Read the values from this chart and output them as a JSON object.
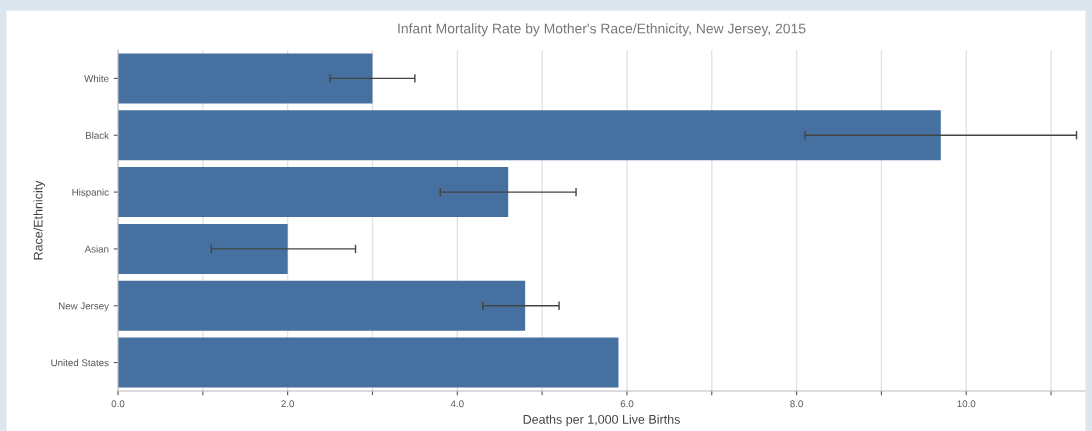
{
  "chart_data": {
    "type": "bar",
    "orientation": "horizontal",
    "title": "Infant Mortality Rate by Mother's Race/Ethnicity, New Jersey, 2015",
    "xlabel": "Deaths per 1,000 Live Births",
    "ylabel": "Race/Ethnicity",
    "categories": [
      "White",
      "Black",
      "Hispanic",
      "Asian",
      "New Jersey",
      "United States"
    ],
    "values": [
      3.0,
      9.7,
      4.6,
      2.0,
      4.8,
      5.9
    ],
    "errors": [
      [
        2.5,
        3.5
      ],
      [
        8.1,
        11.3
      ],
      [
        3.8,
        5.4
      ],
      [
        1.1,
        2.8
      ],
      [
        4.3,
        5.2
      ],
      null
    ],
    "color": "#46709f",
    "xlim": [
      0,
      11.4
    ],
    "xticks": [
      {
        "value": 0,
        "label": "0.0"
      },
      {
        "value": 1,
        "label": null
      },
      {
        "value": 2,
        "label": "2.0"
      },
      {
        "value": 3,
        "label": null
      },
      {
        "value": 4,
        "label": "4.0"
      },
      {
        "value": 5,
        "label": null
      },
      {
        "value": 6,
        "label": "6.0"
      },
      {
        "value": 7,
        "label": null
      },
      {
        "value": 8,
        "label": "8.0"
      },
      {
        "value": 9,
        "label": null
      },
      {
        "value": 10,
        "label": "10.0"
      },
      {
        "value": 11,
        "label": null
      }
    ],
    "grid": "x"
  }
}
